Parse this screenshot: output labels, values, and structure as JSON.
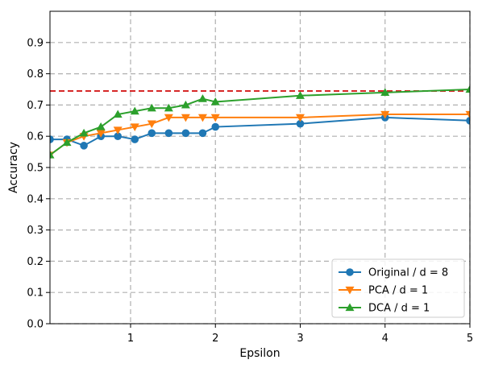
{
  "chart_data": {
    "type": "line",
    "xlabel": "Epsilon",
    "ylabel": "Accuracy",
    "xlim": [
      0.05,
      5.0
    ],
    "ylim": [
      0.0,
      1.0
    ],
    "xticks": [
      1,
      2,
      3,
      4,
      5
    ],
    "xtick_labels": [
      "1",
      "2",
      "3",
      "4",
      "5"
    ],
    "yticks": [
      0.0,
      0.1,
      0.2,
      0.3,
      0.4,
      0.5,
      0.6,
      0.7,
      0.8,
      0.9
    ],
    "ytick_labels": [
      "0.0",
      "0.1",
      "0.2",
      "0.3",
      "0.4",
      "0.5",
      "0.6",
      "0.7",
      "0.8",
      "0.9"
    ],
    "grid": true,
    "legend_position": "bottom-right",
    "reference_line": {
      "y": 0.745,
      "color": "#d62728",
      "style": "dashed"
    },
    "series": [
      {
        "name": "Original / d = 8",
        "color": "#1f77b4",
        "marker": "circle",
        "x": [
          0.05,
          0.25,
          0.45,
          0.65,
          0.85,
          1.05,
          1.25,
          1.45,
          1.65,
          1.85,
          2.0,
          3.0,
          4.0,
          5.0
        ],
        "y": [
          0.59,
          0.59,
          0.57,
          0.6,
          0.6,
          0.59,
          0.61,
          0.61,
          0.61,
          0.61,
          0.63,
          0.64,
          0.66,
          0.65
        ]
      },
      {
        "name": "PCA / d = 1",
        "color": "#ff7f0e",
        "marker": "triangle-down",
        "x": [
          0.05,
          0.25,
          0.45,
          0.65,
          0.85,
          1.05,
          1.25,
          1.45,
          1.65,
          1.85,
          2.0,
          3.0,
          4.0,
          5.0
        ],
        "y": [
          0.54,
          0.58,
          0.6,
          0.61,
          0.62,
          0.63,
          0.64,
          0.66,
          0.66,
          0.66,
          0.66,
          0.66,
          0.67,
          0.67
        ]
      },
      {
        "name": "DCA / d = 1",
        "color": "#2ca02c",
        "marker": "triangle-up",
        "x": [
          0.05,
          0.25,
          0.45,
          0.65,
          0.85,
          1.05,
          1.25,
          1.45,
          1.65,
          1.85,
          2.0,
          3.0,
          4.0,
          5.0
        ],
        "y": [
          0.54,
          0.58,
          0.61,
          0.63,
          0.67,
          0.68,
          0.69,
          0.69,
          0.7,
          0.72,
          0.71,
          0.73,
          0.74,
          0.75
        ]
      }
    ]
  }
}
